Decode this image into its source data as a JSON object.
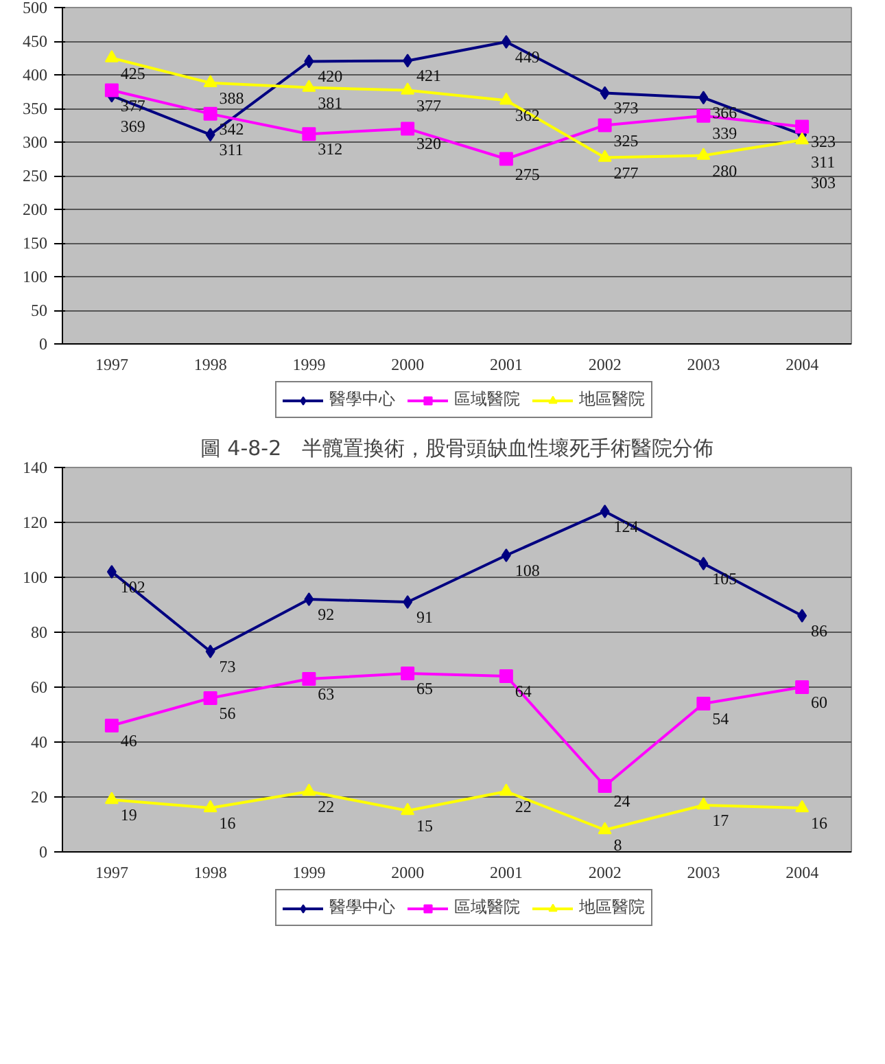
{
  "chart_data": [
    {
      "type": "line",
      "categories": [
        "1997",
        "1998",
        "1999",
        "2000",
        "2001",
        "2002",
        "2003",
        "2004"
      ],
      "ylim": [
        0,
        500
      ],
      "yticks": [
        0,
        50,
        100,
        150,
        200,
        250,
        300,
        350,
        400,
        450,
        500
      ],
      "grid": "y",
      "legend": "bottom",
      "data_labels": true,
      "series": [
        {
          "name": "醫學中心",
          "color": "#000080",
          "marker": "diamond",
          "values": [
            369,
            311,
            420,
            421,
            449,
            373,
            366,
            311
          ]
        },
        {
          "name": "區域醫院",
          "color": "#ff00ff",
          "marker": "square",
          "values": [
            377,
            342,
            312,
            320,
            275,
            325,
            339,
            323
          ]
        },
        {
          "name": "地區醫院",
          "color": "#ffff00",
          "marker": "triangle",
          "values": [
            425,
            388,
            381,
            377,
            362,
            277,
            280,
            303
          ]
        }
      ]
    },
    {
      "type": "line",
      "title": "圖 4-8-2　半髖置換術，股骨頭缺血性壞死手術醫院分佈",
      "categories": [
        "1997",
        "1998",
        "1999",
        "2000",
        "2001",
        "2002",
        "2003",
        "2004"
      ],
      "ylim": [
        0,
        140
      ],
      "yticks": [
        0,
        20,
        40,
        60,
        80,
        100,
        120,
        140
      ],
      "grid": "y",
      "legend": "bottom",
      "data_labels": true,
      "series": [
        {
          "name": "醫學中心",
          "color": "#000080",
          "marker": "diamond",
          "values": [
            102,
            73,
            92,
            91,
            108,
            124,
            105,
            86
          ]
        },
        {
          "name": "區域醫院",
          "color": "#ff00ff",
          "marker": "square",
          "values": [
            46,
            56,
            63,
            65,
            64,
            24,
            54,
            60
          ]
        },
        {
          "name": "地區醫院",
          "color": "#ffff00",
          "marker": "triangle",
          "values": [
            19,
            16,
            22,
            15,
            22,
            8,
            17,
            16
          ]
        }
      ]
    }
  ]
}
